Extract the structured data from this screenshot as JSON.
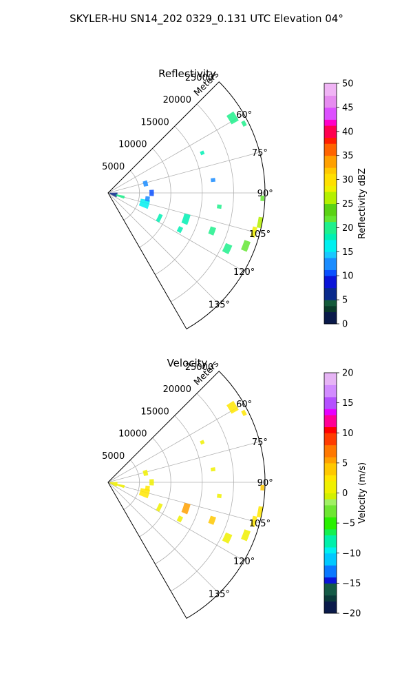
{
  "figure": {
    "title": "SKYLER-HU  SN14_202  0329_0.131 UTC Elevation 04°"
  },
  "chart_data": [
    {
      "type": "polar-sector",
      "title": "Reflectivity",
      "radial_axis_label": "Meters",
      "radial_range": [
        0,
        25000
      ],
      "radial_ticks": [
        5000,
        10000,
        15000,
        20000,
        25000
      ],
      "radial_tick_labels": [
        "5000",
        "10000",
        "15000",
        "20000",
        "25000"
      ],
      "azimuth_range_deg": [
        45,
        150
      ],
      "azimuth_ticks_deg": [
        60,
        75,
        90,
        105,
        120,
        135
      ],
      "azimuth_tick_labels": [
        "60°",
        "75°",
        "90°",
        "105°",
        "120°",
        "135°"
      ],
      "grid": true,
      "colorbar": {
        "label": "Reflectivity dBZ",
        "range": [
          0,
          50
        ],
        "ticks": [
          0,
          5,
          10,
          15,
          20,
          25,
          30,
          35,
          40,
          45,
          50
        ],
        "tick_labels": [
          "0",
          "5",
          "10",
          "15",
          "20",
          "25",
          "30",
          "35",
          "40",
          "45",
          "50"
        ]
      },
      "echoes": [
        {
          "az": [
            72,
            80
          ],
          "r": [
            5800,
            6500
          ],
          "value": 13
        },
        {
          "az": [
            86,
            94
          ],
          "r": [
            6600,
            7300
          ],
          "value": 10
        },
        {
          "az": [
            100,
            112
          ],
          "r": [
            5300,
            6800
          ],
          "value": 15
        },
        {
          "az": [
            95,
            102
          ],
          "r": [
            6000,
            6700
          ],
          "value": 12
        },
        {
          "az": [
            88,
            118
          ],
          "r": [
            300,
            1500
          ],
          "value": 6
        },
        {
          "az": [
            100,
            110
          ],
          "r": [
            1300,
            2700
          ],
          "value": 19
        },
        {
          "az": [
            112,
            120
          ],
          "r": [
            8800,
            9400
          ],
          "value": 18
        },
        {
          "az": [
            115,
            119
          ],
          "r": [
            12500,
            13200
          ],
          "value": 18
        },
        {
          "az": [
            105,
            112
          ],
          "r": [
            12600,
            13600
          ],
          "value": 18
        },
        {
          "az": [
            108,
            112
          ],
          "r": [
            17200,
            18100
          ],
          "value": 20
        },
        {
          "az": [
            113,
            117
          ],
          "r": [
            20400,
            21500
          ],
          "value": 20
        },
        {
          "az": [
            109,
            113
          ],
          "r": [
            23000,
            24000
          ],
          "value": 22
        },
        {
          "az": [
            103,
            107
          ],
          "r": [
            23700,
            24400
          ],
          "value": 27
        },
        {
          "az": [
            99,
            103
          ],
          "r": [
            24300,
            25000
          ],
          "value": 26
        },
        {
          "az": [
            91,
            93
          ],
          "r": [
            24300,
            24900
          ],
          "value": 22
        },
        {
          "az": [
            96,
            98
          ],
          "r": [
            17500,
            18200
          ],
          "value": 19
        },
        {
          "az": [
            82,
            84
          ],
          "r": [
            16500,
            17200
          ],
          "value": 13
        },
        {
          "az": [
            66,
            68
          ],
          "r": [
            16000,
            16600
          ],
          "value": 18
        },
        {
          "az": [
            57,
            61
          ],
          "r": [
            22500,
            23800
          ],
          "value": 20
        },
        {
          "az": [
            62,
            64
          ],
          "r": [
            24000,
            24600
          ],
          "value": 20
        }
      ]
    },
    {
      "type": "polar-sector",
      "title": "Velocity",
      "radial_axis_label": "Meters",
      "radial_range": [
        0,
        25000
      ],
      "radial_ticks": [
        5000,
        10000,
        15000,
        20000,
        25000
      ],
      "radial_tick_labels": [
        "5000",
        "10000",
        "15000",
        "20000",
        "25000"
      ],
      "azimuth_range_deg": [
        45,
        150
      ],
      "azimuth_ticks_deg": [
        60,
        75,
        90,
        105,
        120,
        135
      ],
      "azimuth_tick_labels": [
        "60°",
        "75°",
        "90°",
        "105°",
        "120°",
        "135°"
      ],
      "grid": true,
      "colorbar": {
        "label": "Velocity (m/s)",
        "range": [
          -20,
          20
        ],
        "ticks": [
          -20,
          -15,
          -10,
          -5,
          0,
          5,
          10,
          15,
          20
        ],
        "tick_labels": [
          "−20",
          "−15",
          "−10",
          "−5",
          "0",
          "5",
          "10",
          "15",
          "20"
        ]
      },
      "echoes": [
        {
          "az": [
            72,
            80
          ],
          "r": [
            5800,
            6500
          ],
          "value": 1
        },
        {
          "az": [
            86,
            94
          ],
          "r": [
            6600,
            7300
          ],
          "value": 1
        },
        {
          "az": [
            100,
            112
          ],
          "r": [
            5300,
            6800
          ],
          "value": 3
        },
        {
          "az": [
            95,
            102
          ],
          "r": [
            6000,
            6700
          ],
          "value": 2
        },
        {
          "az": [
            88,
            118
          ],
          "r": [
            300,
            1500
          ],
          "value": 0
        },
        {
          "az": [
            100,
            110
          ],
          "r": [
            1300,
            2700
          ],
          "value": 0
        },
        {
          "az": [
            112,
            120
          ],
          "r": [
            8800,
            9400
          ],
          "value": 1
        },
        {
          "az": [
            115,
            119
          ],
          "r": [
            12500,
            13200
          ],
          "value": 1
        },
        {
          "az": [
            105,
            112
          ],
          "r": [
            12600,
            13600
          ],
          "value": 6
        },
        {
          "az": [
            108,
            112
          ],
          "r": [
            17200,
            18100
          ],
          "value": 4
        },
        {
          "az": [
            113,
            117
          ],
          "r": [
            20400,
            21500
          ],
          "value": 1
        },
        {
          "az": [
            109,
            113
          ],
          "r": [
            23000,
            24000
          ],
          "value": 1
        },
        {
          "az": [
            103,
            107
          ],
          "r": [
            23700,
            24400
          ],
          "value": 3
        },
        {
          "az": [
            99,
            103
          ],
          "r": [
            24300,
            25000
          ],
          "value": 3
        },
        {
          "az": [
            91,
            93
          ],
          "r": [
            24300,
            24900
          ],
          "value": 4
        },
        {
          "az": [
            96,
            98
          ],
          "r": [
            17500,
            18200
          ],
          "value": 1
        },
        {
          "az": [
            82,
            84
          ],
          "r": [
            16500,
            17200
          ],
          "value": 1
        },
        {
          "az": [
            66,
            68
          ],
          "r": [
            16000,
            16600
          ],
          "value": 1
        },
        {
          "az": [
            57,
            61
          ],
          "r": [
            22500,
            23800
          ],
          "value": 2
        },
        {
          "az": [
            62,
            64
          ],
          "r": [
            24000,
            24600
          ],
          "value": 2
        }
      ]
    }
  ]
}
